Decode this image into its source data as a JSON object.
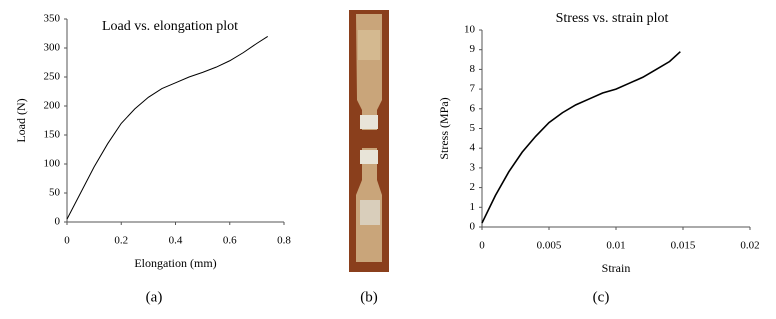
{
  "chart_data": [
    {
      "type": "line",
      "title": "Load vs. elongation plot",
      "x_label": "Elongation (mm)",
      "y_label": "Load (N)",
      "x": [
        0,
        0.05,
        0.1,
        0.15,
        0.2,
        0.25,
        0.3,
        0.35,
        0.4,
        0.45,
        0.5,
        0.55,
        0.6,
        0.65,
        0.7,
        0.74
      ],
      "values": [
        5,
        50,
        95,
        135,
        170,
        195,
        215,
        230,
        240,
        250,
        258,
        267,
        278,
        292,
        308,
        320
      ],
      "color": "#000000",
      "xlim": [
        0,
        0.8
      ],
      "xticks": [
        0,
        0.2,
        0.4,
        0.6,
        0.8
      ],
      "ylim": [
        0,
        350
      ],
      "yticks": [
        0,
        50,
        100,
        150,
        200,
        250,
        300,
        350
      ]
    },
    {
      "type": "line",
      "title": "Stress vs. strain plot",
      "x_label": "Strain",
      "y_label": "Stress (MPa)",
      "x": [
        0,
        0.001,
        0.002,
        0.003,
        0.004,
        0.005,
        0.006,
        0.007,
        0.008,
        0.009,
        0.01,
        0.011,
        0.012,
        0.013,
        0.014,
        0.0148
      ],
      "values": [
        0.2,
        1.6,
        2.8,
        3.8,
        4.6,
        5.3,
        5.8,
        6.2,
        6.5,
        6.8,
        7.0,
        7.3,
        7.6,
        8.0,
        8.4,
        8.9
      ],
      "color": "#000000",
      "xlim": [
        0,
        0.02
      ],
      "xticks": [
        0,
        0.005,
        0.01,
        0.015,
        0.02
      ],
      "ylim": [
        0,
        10
      ],
      "yticks": [
        0,
        1,
        2,
        3,
        4,
        5,
        6,
        7,
        8,
        9,
        10
      ]
    }
  ],
  "captions": [
    "(a)",
    "(b)",
    "(c)"
  ]
}
